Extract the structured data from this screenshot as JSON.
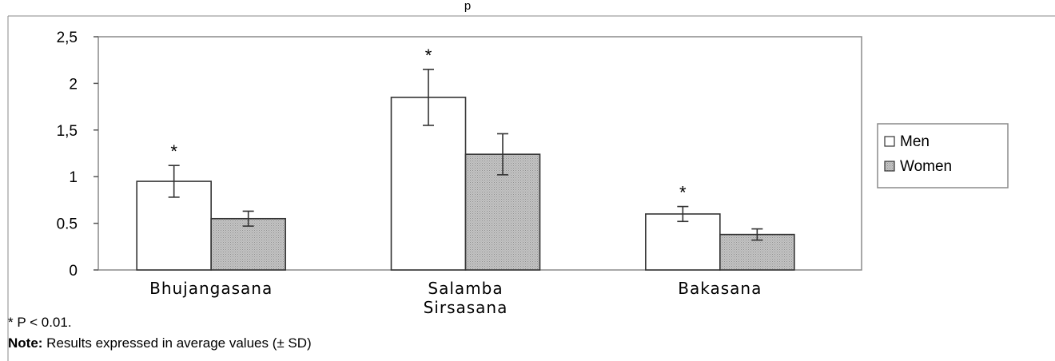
{
  "header_fragment": "p",
  "chart_data": {
    "type": "bar",
    "title": "",
    "xlabel": "",
    "ylabel": "",
    "ylim": [
      0,
      2.5
    ],
    "yticks": [
      0,
      0.5,
      1,
      1.5,
      2,
      2.5
    ],
    "ytick_labels": [
      "0",
      "0.5",
      "1",
      "1,5",
      "2",
      "2,5"
    ],
    "categories": [
      {
        "lines": [
          "Bhujangasana"
        ]
      },
      {
        "lines": [
          "Salamba",
          "Sirsasana"
        ]
      },
      {
        "lines": [
          "Bakasana"
        ]
      }
    ],
    "series": [
      {
        "name": "Men",
        "color": "#ffffff",
        "values": [
          0.95,
          1.85,
          0.6
        ],
        "sd": [
          0.17,
          0.3,
          0.08
        ],
        "significant": [
          true,
          true,
          true
        ]
      },
      {
        "name": "Women",
        "color": "#bdbdbd",
        "values": [
          0.55,
          1.24,
          0.38
        ],
        "sd": [
          0.08,
          0.22,
          0.06
        ],
        "significant": [
          false,
          false,
          false
        ]
      }
    ],
    "significance_marker": "*",
    "legend_position": "right",
    "grid": false
  },
  "footnotes": {
    "p_value": "* P < 0.01.",
    "note_label": "Note:",
    "note_text": " Results expressed in average values (± SD)"
  }
}
